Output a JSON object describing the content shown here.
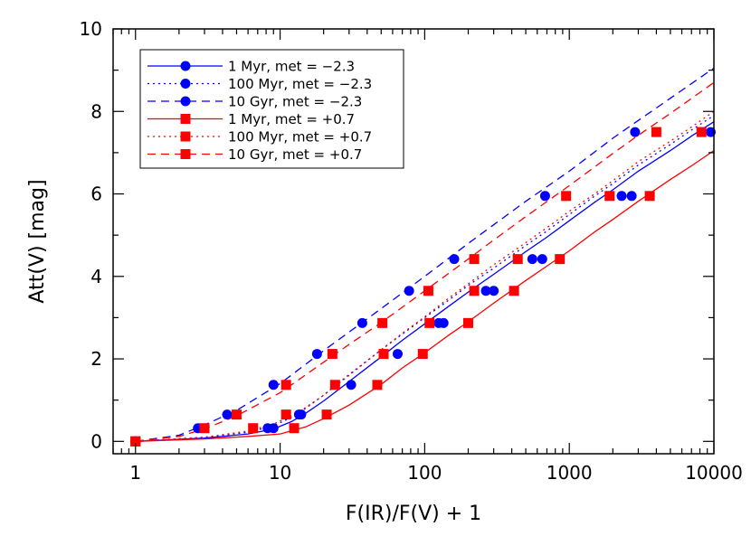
{
  "chart_data": {
    "type": "line",
    "xlabel": "F(IR)/F(V) + 1",
    "ylabel": "Att(V) [mag]",
    "xscale": "log",
    "xlim": [
      0.7,
      10000
    ],
    "ylim": [
      -0.3,
      10
    ],
    "grid": false,
    "legend_position": "top-left",
    "x_ticks": [
      1,
      10,
      100,
      1000,
      10000
    ],
    "x_tick_labels": [
      "1",
      "10",
      "100",
      "1000",
      "10000"
    ],
    "y_ticks": [
      0,
      2,
      4,
      6,
      8,
      10
    ],
    "y_tick_labels": [
      "0",
      "2",
      "4",
      "6",
      "8",
      "10"
    ],
    "series": [
      {
        "name": "1 Myr, met = −2.3",
        "color": "#0000ff",
        "line_style": "solid",
        "marker": "circle",
        "curve_x": [
          1,
          3,
          6,
          9,
          12,
          15,
          20,
          30,
          50,
          70,
          100,
          150,
          200,
          300,
          500,
          700,
          1000,
          1500,
          2000,
          3000,
          5000,
          7000,
          10000
        ],
        "curve_y": [
          0,
          0.08,
          0.18,
          0.3,
          0.48,
          0.68,
          0.98,
          1.45,
          2.05,
          2.45,
          2.85,
          3.3,
          3.62,
          4.05,
          4.6,
          4.95,
          5.35,
          5.8,
          6.1,
          6.55,
          7.05,
          7.4,
          7.75
        ],
        "markers_x": [
          1,
          8.2,
          14,
          65,
          135,
          300,
          650,
          2700
        ],
        "markers_y": [
          0,
          0.32,
          0.65,
          2.12,
          2.87,
          3.65,
          4.42,
          5.95
        ]
      },
      {
        "name": "100 Myr, met = −2.3",
        "color": "#0000ff",
        "line_style": "dotted",
        "marker": "circle",
        "curve_x": [
          1,
          3,
          6,
          9,
          12,
          15,
          20,
          30,
          50,
          70,
          100,
          150,
          200,
          300,
          500,
          700,
          1000,
          1500,
          2000,
          3000,
          5000,
          7000,
          10000
        ],
        "curve_y": [
          0,
          0.1,
          0.22,
          0.38,
          0.58,
          0.8,
          1.12,
          1.62,
          2.22,
          2.6,
          3.0,
          3.45,
          3.78,
          4.2,
          4.75,
          5.1,
          5.5,
          5.95,
          6.25,
          6.7,
          7.2,
          7.55,
          7.9
        ],
        "markers_x": [
          1,
          9,
          13.5,
          31,
          125,
          265,
          555,
          2300,
          9500
        ],
        "markers_y": [
          0,
          0.32,
          0.65,
          1.37,
          2.87,
          3.65,
          4.42,
          5.95,
          7.5
        ]
      },
      {
        "name": "10 Gyr, met = −2.3",
        "color": "#0000ff",
        "line_style": "dashed",
        "marker": "circle",
        "curve_x": [
          1,
          2,
          3,
          5,
          10,
          20,
          30,
          50,
          100,
          200,
          300,
          500,
          1000,
          2000,
          3000,
          5000,
          10000
        ],
        "curve_y": [
          0,
          0.15,
          0.4,
          0.75,
          1.4,
          2.2,
          2.65,
          3.22,
          4.0,
          4.8,
          5.25,
          5.82,
          6.55,
          7.35,
          7.78,
          8.32,
          9.05
        ],
        "markers_x": [
          1,
          2.7,
          4.3,
          9,
          18,
          37,
          78,
          160,
          680,
          2850
        ],
        "markers_y": [
          0,
          0.32,
          0.65,
          1.37,
          2.12,
          2.87,
          3.65,
          4.42,
          5.95,
          7.5
        ]
      },
      {
        "name": "1 Myr, met = +0.7",
        "color": "#ff0000",
        "line_style": "solid",
        "marker": "square",
        "curve_x": [
          1,
          3,
          6,
          10,
          15,
          20,
          30,
          50,
          70,
          100,
          150,
          200,
          300,
          500,
          700,
          1000,
          1500,
          2000,
          3000,
          5000,
          7000,
          10000
        ],
        "curve_y": [
          0,
          0.06,
          0.12,
          0.18,
          0.35,
          0.55,
          0.88,
          1.38,
          1.78,
          2.15,
          2.6,
          2.9,
          3.35,
          3.9,
          4.25,
          4.62,
          5.08,
          5.38,
          5.82,
          6.35,
          6.68,
          7.05
        ],
        "markers_x": [
          1,
          12.5,
          21,
          47,
          97,
          200,
          415,
          860,
          3600
        ],
        "markers_y": [
          0,
          0.32,
          0.65,
          1.37,
          2.12,
          2.87,
          3.65,
          4.42,
          5.95
        ]
      },
      {
        "name": "100 Myr, met = +0.7",
        "color": "#ff0000",
        "line_style": "dotted",
        "marker": "square",
        "curve_x": [
          1,
          3,
          6,
          9,
          12,
          15,
          20,
          30,
          50,
          70,
          100,
          150,
          200,
          300,
          500,
          700,
          1000,
          1500,
          2000,
          3000,
          5000,
          7000,
          10000
        ],
        "curve_y": [
          0,
          0.1,
          0.25,
          0.42,
          0.62,
          0.82,
          1.12,
          1.6,
          2.22,
          2.62,
          3.02,
          3.5,
          3.82,
          4.28,
          4.82,
          5.18,
          5.58,
          6.0,
          6.32,
          6.78,
          7.28,
          7.62,
          8.0
        ],
        "markers_x": [
          1,
          6.5,
          11,
          24,
          52,
          108,
          220,
          440,
          1900,
          8200
        ],
        "markers_y": [
          0,
          0.32,
          0.65,
          1.37,
          2.12,
          2.87,
          3.65,
          4.42,
          5.95,
          7.5
        ]
      },
      {
        "name": "10 Gyr, met = +0.7",
        "color": "#ff0000",
        "line_style": "dashed",
        "marker": "square",
        "curve_x": [
          1,
          2,
          3,
          5,
          10,
          20,
          30,
          50,
          100,
          200,
          300,
          500,
          1000,
          2000,
          3000,
          5000,
          10000
        ],
        "curve_y": [
          0,
          0.12,
          0.3,
          0.62,
          1.18,
          1.92,
          2.35,
          2.88,
          3.65,
          4.42,
          4.88,
          5.45,
          6.2,
          6.98,
          7.42,
          7.95,
          8.7
        ],
        "markers_x": [
          1,
          3,
          5,
          11,
          23,
          51,
          106,
          220,
          950,
          4000
        ],
        "markers_y": [
          0,
          0.32,
          0.65,
          1.37,
          2.12,
          2.87,
          3.65,
          4.42,
          5.95,
          7.5
        ]
      }
    ]
  }
}
